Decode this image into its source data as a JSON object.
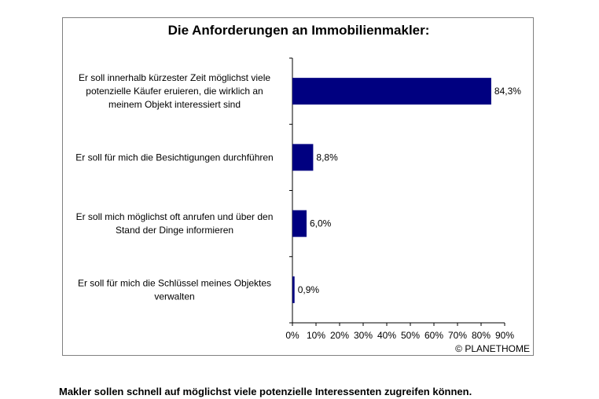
{
  "chart_data": {
    "type": "bar",
    "orientation": "horizontal",
    "title": "Die Anforderungen an Immobilienmakler:",
    "categories": [
      [
        "Er soll innerhalb kürzester Zeit möglichst viele",
        "potenzielle Käufer eruieren, die wirklich an",
        "meinem Objekt interessiert sind"
      ],
      [
        "Er soll für mich die Besichtigungen durchführen"
      ],
      [
        "Er soll mich möglichst oft anrufen und über den",
        "Stand der Dinge informieren"
      ],
      [
        "Er soll für mich die Schlüssel meines Objektes",
        "verwalten"
      ]
    ],
    "values": [
      84.3,
      8.8,
      6.0,
      0.9
    ],
    "value_labels": [
      "84,3%",
      "8,8%",
      "6,0%",
      "0,9%"
    ],
    "xlim": [
      0,
      90
    ],
    "xticks": [
      "0%",
      "10%",
      "20%",
      "30%",
      "40%",
      "50%",
      "60%",
      "70%",
      "80%",
      "90%"
    ],
    "bar_color": "#000080",
    "grid": false,
    "legend": "none",
    "source": "© PLANETHOME"
  },
  "caption": "Makler sollen schnell auf möglichst viele potenzielle Interessenten zugreifen können."
}
